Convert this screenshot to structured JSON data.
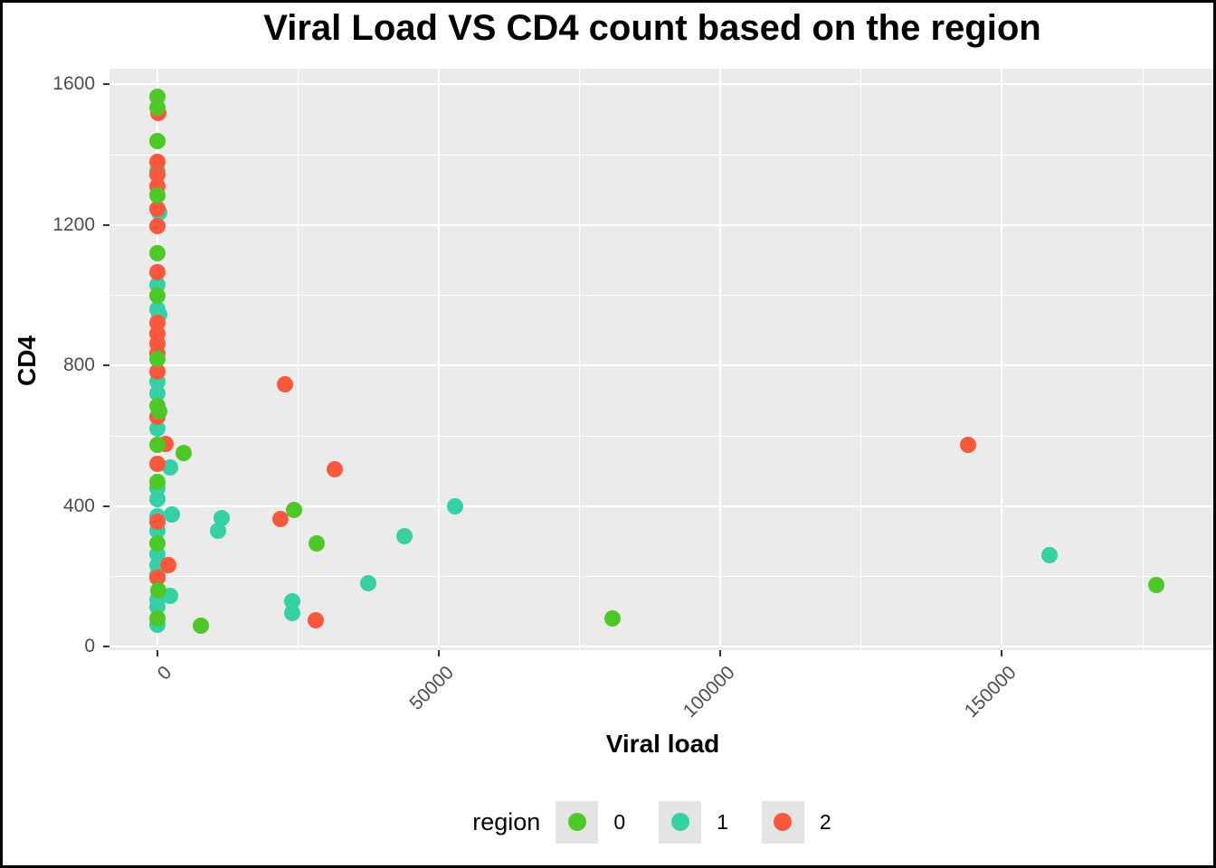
{
  "chart_data": {
    "type": "scatter",
    "title": "Viral Load VS CD4 count based on the region",
    "xlabel": "Viral load",
    "ylabel": "CD4",
    "grid": true,
    "panel_background": "#EBEBEB",
    "gridline_color": "#FFFFFF",
    "tick_label_color": "#4D4D4D",
    "xlim": [
      -8500,
      188000
    ],
    "ylim": [
      -10,
      1645
    ],
    "x_ticks": [
      0,
      50000,
      100000,
      150000
    ],
    "x_minor_ticks": [
      25000,
      75000,
      125000,
      175000
    ],
    "y_ticks": [
      0,
      400,
      800,
      1200,
      1600
    ],
    "y_minor_ticks": [
      200,
      600,
      1000,
      1400
    ],
    "legend": {
      "title": "region",
      "position": "bottom",
      "entries": [
        {
          "label": "0",
          "color": "#4DC826"
        },
        {
          "label": "1",
          "color": "#35D1A4"
        },
        {
          "label": "2",
          "color": "#F8583C"
        }
      ]
    },
    "series": [
      {
        "name": "1",
        "color": "#35D1A4",
        "points": [
          [
            0,
            1355
          ],
          [
            300,
            1235
          ],
          [
            0,
            1030
          ],
          [
            0,
            960
          ],
          [
            300,
            945
          ],
          [
            0,
            755
          ],
          [
            0,
            720
          ],
          [
            0,
            620
          ],
          [
            2250,
            510
          ],
          [
            0,
            450
          ],
          [
            0,
            420
          ],
          [
            2600,
            375
          ],
          [
            0,
            372
          ],
          [
            0,
            330
          ],
          [
            0,
            262
          ],
          [
            0,
            232
          ],
          [
            0,
            203
          ],
          [
            2250,
            145
          ],
          [
            0,
            134
          ],
          [
            0,
            113
          ],
          [
            0,
            62
          ],
          [
            11400,
            365
          ],
          [
            10800,
            330
          ],
          [
            24000,
            130
          ],
          [
            24000,
            95
          ],
          [
            37500,
            180
          ],
          [
            43800,
            315
          ],
          [
            52900,
            400
          ],
          [
            158400,
            260
          ]
        ]
      },
      {
        "name": "2",
        "color": "#F8583C",
        "points": [
          [
            150,
            1518
          ],
          [
            0,
            1380
          ],
          [
            0,
            1345
          ],
          [
            0,
            1310
          ],
          [
            0,
            1245
          ],
          [
            0,
            1197
          ],
          [
            0,
            1065
          ],
          [
            0,
            923
          ],
          [
            0,
            890
          ],
          [
            0,
            863
          ],
          [
            0,
            833
          ],
          [
            0,
            784
          ],
          [
            0,
            655
          ],
          [
            1450,
            578
          ],
          [
            0,
            520
          ],
          [
            0,
            355
          ],
          [
            1900,
            233
          ],
          [
            0,
            196
          ],
          [
            21900,
            362
          ],
          [
            22700,
            748
          ],
          [
            28200,
            75
          ],
          [
            31500,
            505
          ],
          [
            143900,
            575
          ]
        ]
      },
      {
        "name": "0",
        "color": "#4DC826",
        "points": [
          [
            0,
            1565
          ],
          [
            0,
            1535
          ],
          [
            0,
            1440
          ],
          [
            0,
            1285
          ],
          [
            0,
            1120
          ],
          [
            0,
            1000
          ],
          [
            0,
            820
          ],
          [
            0,
            685
          ],
          [
            300,
            670
          ],
          [
            0,
            575
          ],
          [
            0,
            470
          ],
          [
            0,
            295
          ],
          [
            150,
            160
          ],
          [
            0,
            80
          ],
          [
            4700,
            550
          ],
          [
            7700,
            60
          ],
          [
            24200,
            390
          ],
          [
            28300,
            295
          ],
          [
            80900,
            80
          ],
          [
            177400,
            175
          ]
        ]
      }
    ]
  }
}
